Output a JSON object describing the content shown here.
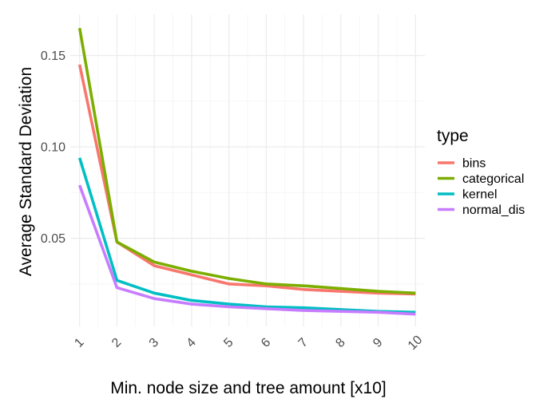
{
  "chart_data": {
    "type": "line",
    "xlabel": "Min. node size and tree amount [x10]",
    "ylabel": "Average Standard Deviation",
    "x": [
      1,
      2,
      3,
      4,
      5,
      6,
      7,
      8,
      9,
      10
    ],
    "x_ticks": [
      "1",
      "2",
      "3",
      "4",
      "5",
      "6",
      "7",
      "8",
      "9",
      "10"
    ],
    "y_ticks": [
      {
        "value": 0.05,
        "label": "0.05"
      },
      {
        "value": 0.1,
        "label": "0.10"
      },
      {
        "value": 0.15,
        "label": "0.15"
      }
    ],
    "xlim": [
      0.75,
      10.25
    ],
    "ylim": [
      0.0018,
      0.1725
    ],
    "grid": true,
    "legend": {
      "title": "type",
      "position": "right"
    },
    "series": [
      {
        "name": "bins",
        "color": "#F8766D",
        "values": [
          0.145,
          0.048,
          0.035,
          0.03,
          0.025,
          0.024,
          0.022,
          0.021,
          0.02,
          0.0195
        ]
      },
      {
        "name": "categorical",
        "color": "#7CAE00",
        "values": [
          0.165,
          0.048,
          0.037,
          0.032,
          0.028,
          0.025,
          0.024,
          0.0225,
          0.021,
          0.02
        ]
      },
      {
        "name": "kernel",
        "color": "#00BFC4",
        "values": [
          0.094,
          0.027,
          0.02,
          0.016,
          0.014,
          0.0125,
          0.012,
          0.011,
          0.01,
          0.0095
        ]
      },
      {
        "name": "normal_dis",
        "color": "#C77CFF",
        "values": [
          0.079,
          0.023,
          0.017,
          0.014,
          0.0125,
          0.0115,
          0.0105,
          0.01,
          0.0095,
          0.0085
        ]
      }
    ]
  }
}
